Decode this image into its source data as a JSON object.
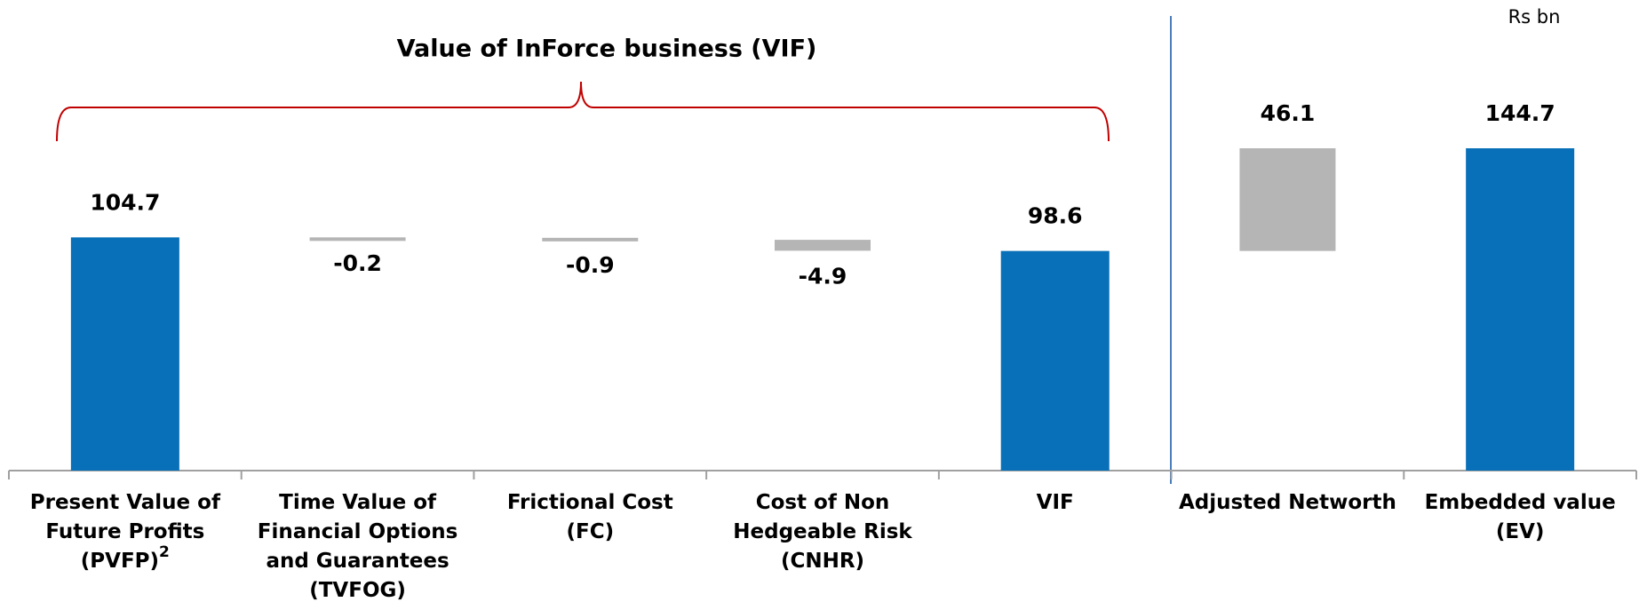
{
  "chart_data": {
    "type": "waterfall",
    "title": "Value of InForce business (VIF)",
    "unit_label": "Rs bn",
    "categories": [
      "Present Value of Future Profits (PVFP)",
      "Time Value of Financial Options and Guarantees (TVFOG)",
      "Frictional Cost (FC)",
      "Cost of Non Hedgeable Risk (CNHR)",
      "VIF",
      "Adjusted Networth",
      "Embedded value (EV)"
    ],
    "footnote_marker": "2",
    "values": [
      104.7,
      -0.2,
      -0.9,
      -4.9,
      98.6,
      46.1,
      144.7
    ],
    "is_total": [
      true,
      false,
      false,
      false,
      true,
      false,
      true
    ],
    "total_color": "#0770b8",
    "delta_color": "#b5b5b5"
  }
}
